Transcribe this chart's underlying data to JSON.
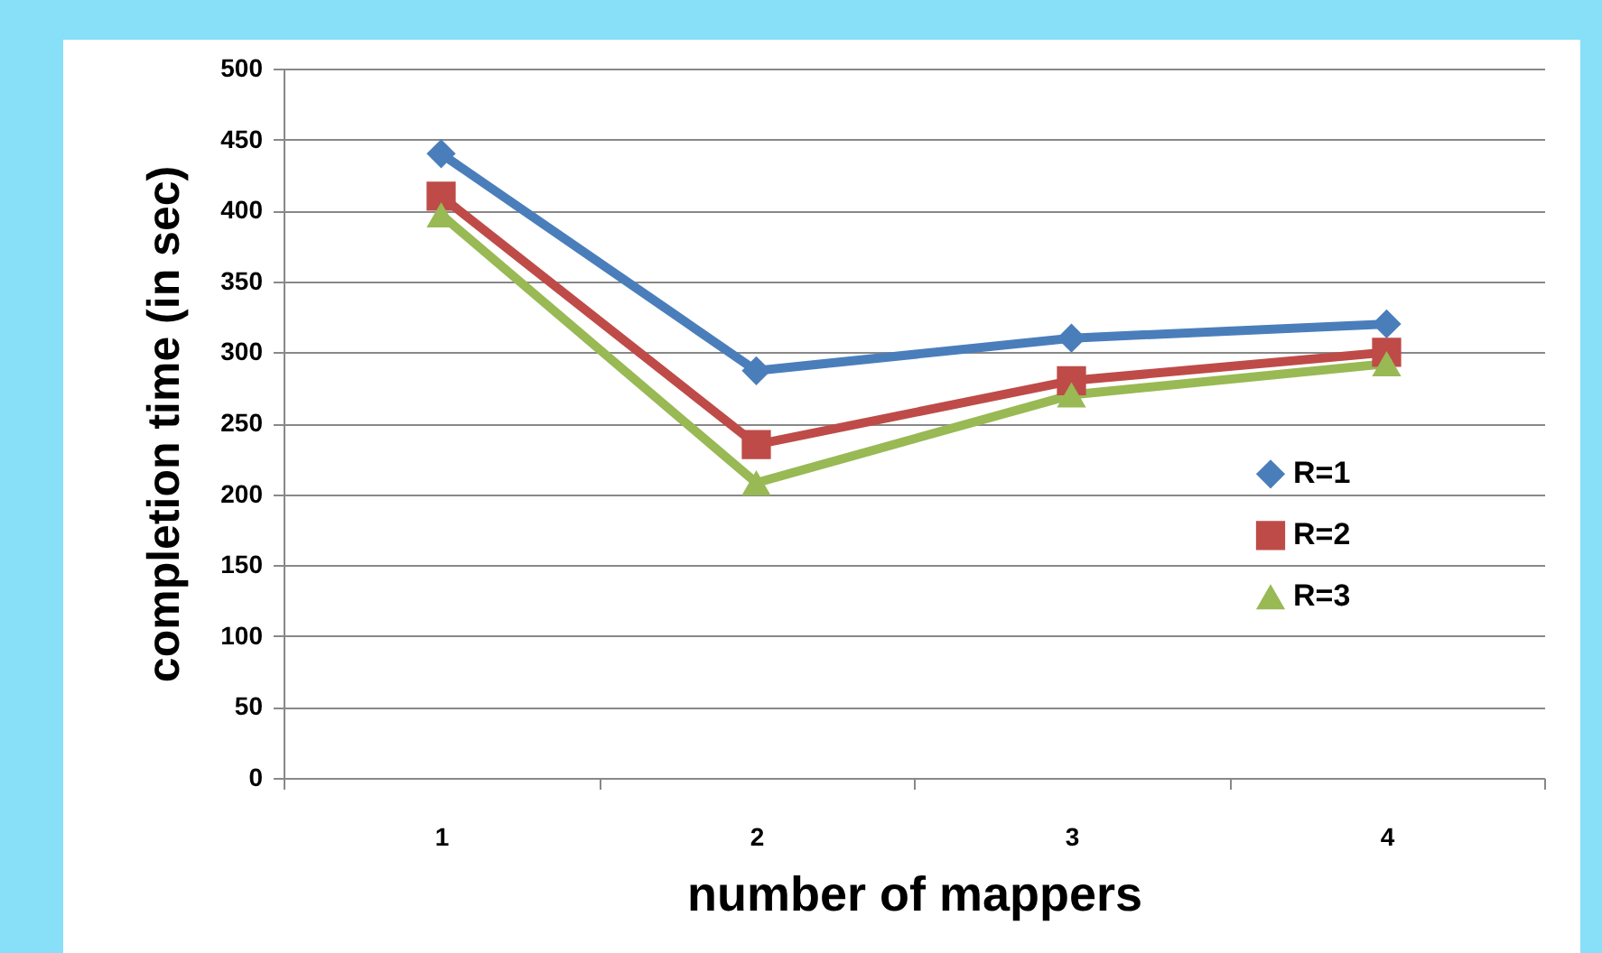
{
  "chart_data": {
    "type": "line",
    "xlabel": "number of mappers",
    "ylabel": "completion time (in sec)",
    "categories": [
      "1",
      "2",
      "3",
      "4"
    ],
    "ylim": [
      0,
      500
    ],
    "yticks": [
      0,
      50,
      100,
      150,
      200,
      250,
      300,
      350,
      400,
      450,
      500
    ],
    "grid": "y",
    "legend": "right",
    "line_style": "solid",
    "series": [
      {
        "name": "R=1",
        "color": "#4a7ebb",
        "marker": "diamond",
        "values": [
          440,
          287,
          310,
          320
        ]
      },
      {
        "name": "R=2",
        "color": "#be4b48",
        "marker": "square",
        "values": [
          410,
          235,
          280,
          300
        ]
      },
      {
        "name": "R=3",
        "color": "#98b954",
        "marker": "triangle",
        "values": [
          397,
          208,
          270,
          292
        ]
      }
    ]
  }
}
